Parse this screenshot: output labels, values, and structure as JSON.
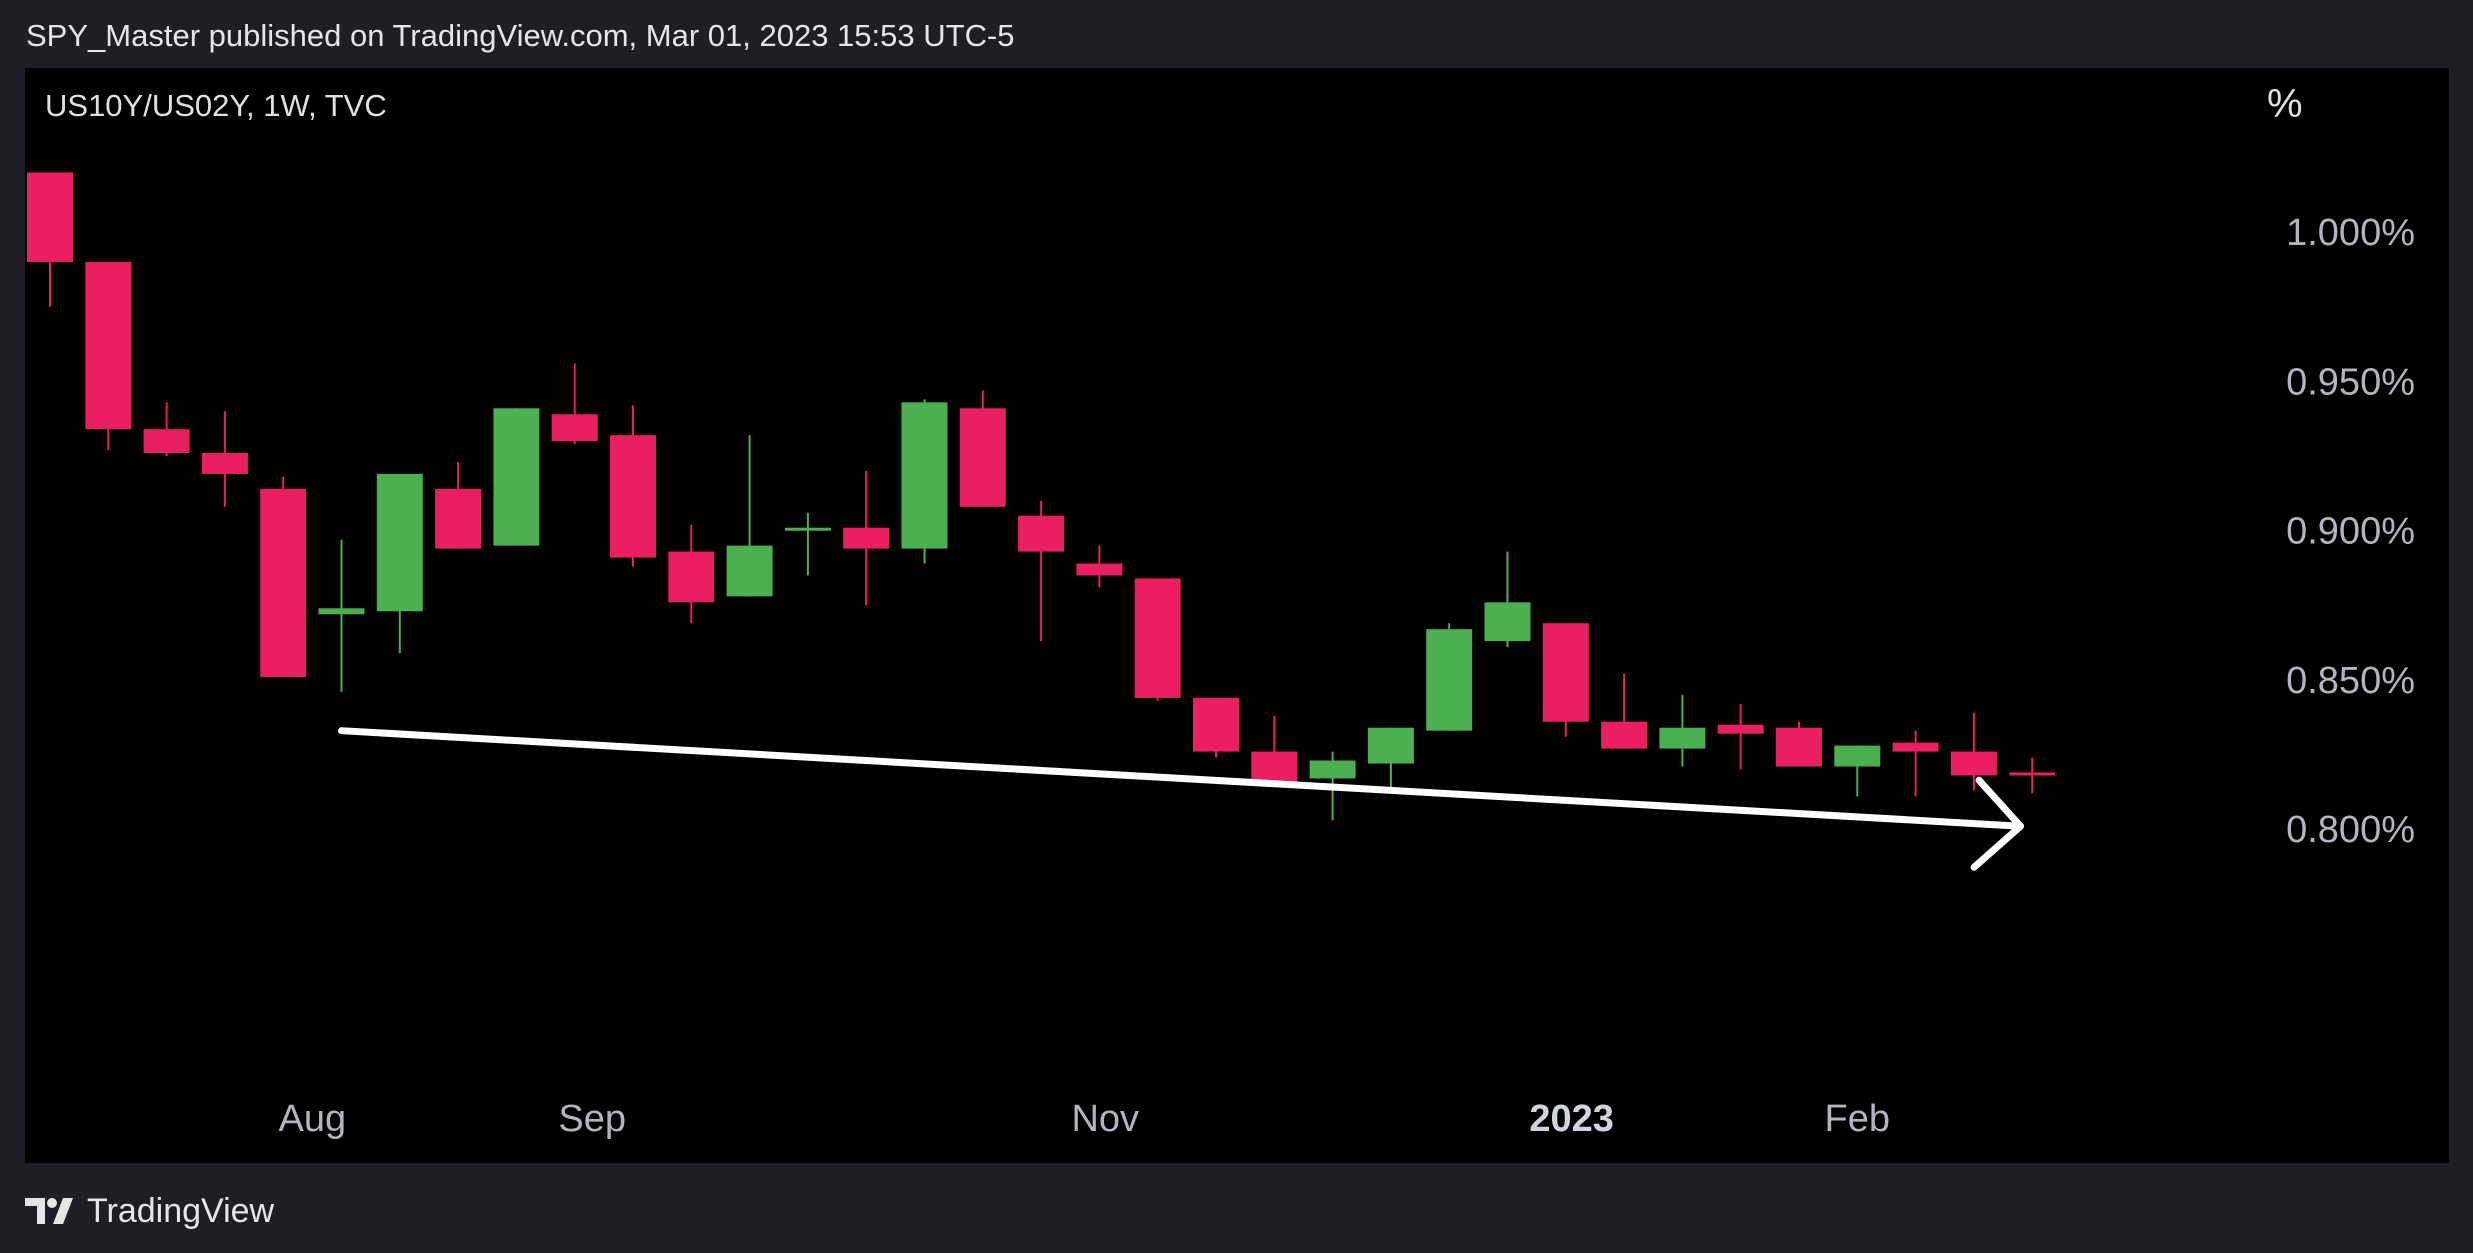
{
  "header": {
    "text": "SPY_Master published on TradingView.com, Mar 01, 2023 15:53 UTC-5"
  },
  "footer": {
    "brand": "TradingView",
    "logo_icon": "tradingview-logo-icon"
  },
  "colors": {
    "background": "#000000",
    "frame": "#1e1f24",
    "up": "#4caf50",
    "down": "#e91e63",
    "axis_text": "#b2b5be",
    "trendline": "#ffffff"
  },
  "chart_data": {
    "type": "candlestick",
    "symbol": "US10Y/US02Y, 1W, TVC",
    "unit": "%",
    "ylim": [
      0.72,
      1.055
    ],
    "y_ticks": [
      {
        "value": 1.0,
        "label": "1.000%"
      },
      {
        "value": 0.95,
        "label": "0.950%"
      },
      {
        "value": 0.9,
        "label": "0.900%"
      },
      {
        "value": 0.85,
        "label": "0.850%"
      },
      {
        "value": 0.8,
        "label": "0.800%"
      }
    ],
    "x_ticks": [
      {
        "index": 4.5,
        "label": "Aug",
        "bold": false
      },
      {
        "index": 9.3,
        "label": "Sep",
        "bold": false
      },
      {
        "index": 18.1,
        "label": "Nov",
        "bold": false
      },
      {
        "index": 26.1,
        "label": "2023",
        "bold": true
      },
      {
        "index": 31.0,
        "label": "Feb",
        "bold": false
      }
    ],
    "candles": [
      {
        "o": 1.02,
        "h": 1.02,
        "l": 0.975,
        "c": 0.99
      },
      {
        "o": 0.99,
        "h": 0.99,
        "l": 0.927,
        "c": 0.934
      },
      {
        "o": 0.934,
        "h": 0.943,
        "l": 0.925,
        "c": 0.926
      },
      {
        "o": 0.926,
        "h": 0.94,
        "l": 0.908,
        "c": 0.919
      },
      {
        "o": 0.914,
        "h": 0.918,
        "l": 0.851,
        "c": 0.851
      },
      {
        "o": 0.872,
        "h": 0.897,
        "l": 0.846,
        "c": 0.874
      },
      {
        "o": 0.873,
        "h": 0.919,
        "l": 0.859,
        "c": 0.919
      },
      {
        "o": 0.914,
        "h": 0.923,
        "l": 0.894,
        "c": 0.894
      },
      {
        "o": 0.895,
        "h": 0.941,
        "l": 0.895,
        "c": 0.941
      },
      {
        "o": 0.939,
        "h": 0.956,
        "l": 0.929,
        "c": 0.93
      },
      {
        "o": 0.932,
        "h": 0.942,
        "l": 0.888,
        "c": 0.891
      },
      {
        "o": 0.893,
        "h": 0.902,
        "l": 0.869,
        "c": 0.876
      },
      {
        "o": 0.878,
        "h": 0.932,
        "l": 0.878,
        "c": 0.895
      },
      {
        "o": 0.9,
        "h": 0.906,
        "l": 0.885,
        "c": 0.901
      },
      {
        "o": 0.901,
        "h": 0.92,
        "l": 0.875,
        "c": 0.894
      },
      {
        "o": 0.894,
        "h": 0.944,
        "l": 0.889,
        "c": 0.943
      },
      {
        "o": 0.941,
        "h": 0.947,
        "l": 0.908,
        "c": 0.908
      },
      {
        "o": 0.905,
        "h": 0.91,
        "l": 0.863,
        "c": 0.893
      },
      {
        "o": 0.889,
        "h": 0.895,
        "l": 0.881,
        "c": 0.885
      },
      {
        "o": 0.884,
        "h": 0.884,
        "l": 0.843,
        "c": 0.844
      },
      {
        "o": 0.844,
        "h": 0.844,
        "l": 0.824,
        "c": 0.826
      },
      {
        "o": 0.826,
        "h": 0.838,
        "l": 0.815,
        "c": 0.815
      },
      {
        "o": 0.817,
        "h": 0.826,
        "l": 0.803,
        "c": 0.823
      },
      {
        "o": 0.822,
        "h": 0.834,
        "l": 0.813,
        "c": 0.834
      },
      {
        "o": 0.833,
        "h": 0.869,
        "l": 0.833,
        "c": 0.867
      },
      {
        "o": 0.863,
        "h": 0.893,
        "l": 0.861,
        "c": 0.876
      },
      {
        "o": 0.869,
        "h": 0.869,
        "l": 0.831,
        "c": 0.836
      },
      {
        "o": 0.836,
        "h": 0.852,
        "l": 0.827,
        "c": 0.827
      },
      {
        "o": 0.827,
        "h": 0.845,
        "l": 0.821,
        "c": 0.834
      },
      {
        "o": 0.835,
        "h": 0.842,
        "l": 0.82,
        "c": 0.832
      },
      {
        "o": 0.834,
        "h": 0.836,
        "l": 0.821,
        "c": 0.821
      },
      {
        "o": 0.821,
        "h": 0.828,
        "l": 0.811,
        "c": 0.828
      },
      {
        "o": 0.829,
        "h": 0.833,
        "l": 0.811,
        "c": 0.826
      },
      {
        "o": 0.826,
        "h": 0.839,
        "l": 0.813,
        "c": 0.818
      },
      {
        "o": 0.819,
        "h": 0.824,
        "l": 0.812,
        "c": 0.818
      }
    ],
    "trendline": {
      "from": {
        "index": 5,
        "value": 0.833
      },
      "to": {
        "index": 33.8,
        "value": 0.801
      },
      "arrow": true
    }
  }
}
